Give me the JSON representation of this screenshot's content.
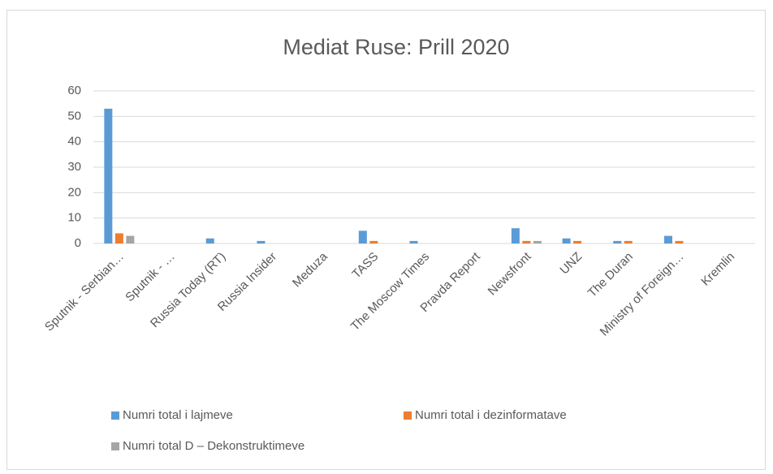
{
  "chart_data": {
    "type": "bar",
    "title": "Mediat Ruse: Prill 2020",
    "categories": [
      "Sputnik - Serbian…",
      "Sputnik - …",
      "Russia Today (RT)",
      "Russia Insider",
      "Meduza",
      "TASS",
      "The Moscow Times",
      "Pravda Report",
      "Newsfront",
      "UNZ",
      "The Duran",
      "Ministry of Foreign…",
      "Kremlin"
    ],
    "series": [
      {
        "name": "Numri total i lajmeve",
        "color": "#5b9bd5",
        "values": [
          53,
          0,
          2,
          1,
          0,
          5,
          1,
          0,
          6,
          2,
          1,
          3,
          0
        ]
      },
      {
        "name": "Numri total i dezinformatave",
        "color": "#ed7d31",
        "values": [
          4,
          0,
          0,
          0,
          0,
          1,
          0,
          0,
          1,
          1,
          1,
          1,
          0
        ]
      },
      {
        "name": "Numri total D – Dekonstruktimeve",
        "color": "#a5a5a5",
        "values": [
          3,
          0,
          0,
          0,
          0,
          0,
          0,
          0,
          1,
          0,
          0,
          0,
          0
        ]
      }
    ],
    "ylim": [
      0,
      60
    ],
    "yticks": [
      0,
      10,
      20,
      30,
      40,
      50,
      60
    ],
    "grid": true,
    "legend": "bottom"
  }
}
